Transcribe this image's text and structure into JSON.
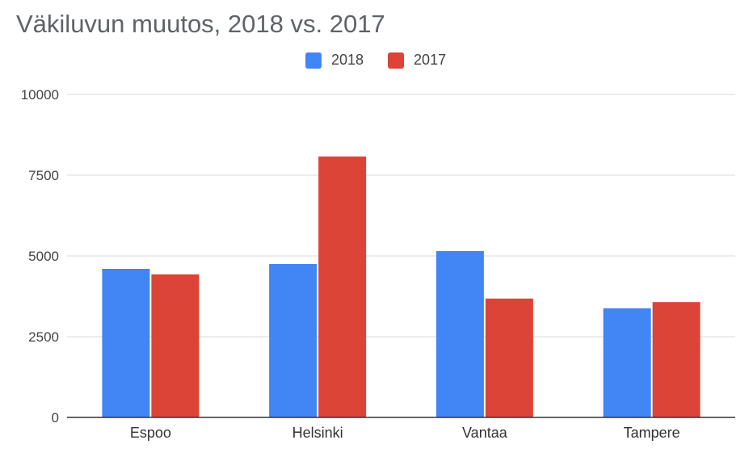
{
  "chart_data": {
    "type": "bar",
    "title": "Väkiluvun muutos, 2018 vs. 2017",
    "categories": [
      "Espoo",
      "Helsinki",
      "Vantaa",
      "Tampere"
    ],
    "series": [
      {
        "name": "2018",
        "color": "#4285f4",
        "values": [
          4600,
          4750,
          5150,
          3380
        ]
      },
      {
        "name": "2017",
        "color": "#db4437",
        "values": [
          4430,
          8080,
          3680,
          3570
        ]
      }
    ],
    "yticks": [
      "0",
      "2500",
      "5000",
      "7500",
      "10000"
    ],
    "ylim": [
      0,
      10000
    ],
    "grid": true,
    "legend_position": "top-center"
  }
}
